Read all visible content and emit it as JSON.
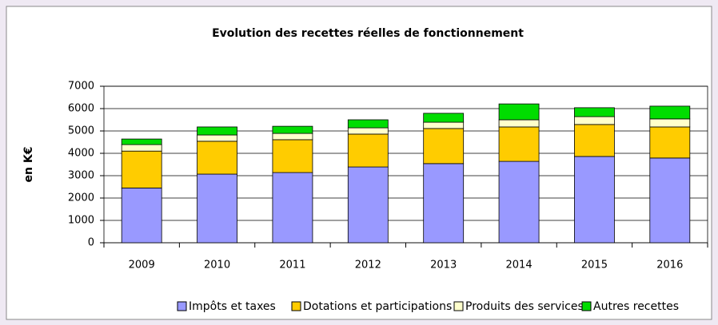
{
  "chart_data": {
    "type": "stacked_bar",
    "title": "Evolution des recettes réelles de fonctionnement",
    "y_label": "en K€",
    "categories": [
      "2009",
      "2010",
      "2011",
      "2012",
      "2013",
      "2014",
      "2015",
      "2016"
    ],
    "series": [
      {
        "name": "Impôts et taxes",
        "color": "#9999ff",
        "values": [
          2450,
          3070,
          3140,
          3390,
          3540,
          3640,
          3860,
          3790
        ]
      },
      {
        "name": "Dotations et participations",
        "color": "#ffcc00",
        "values": [
          1650,
          1470,
          1470,
          1470,
          1570,
          1540,
          1430,
          1390
        ]
      },
      {
        "name": "Produits des services",
        "color": "#ffffcc",
        "values": [
          290,
          280,
          280,
          280,
          280,
          320,
          350,
          360
        ]
      },
      {
        "name": "Autres recettes",
        "color": "#00dd00",
        "values": [
          250,
          360,
          320,
          360,
          400,
          710,
          400,
          570
        ]
      }
    ],
    "ylim": [
      0,
      7000
    ],
    "yticks": [
      0,
      1000,
      2000,
      3000,
      4000,
      5000,
      6000,
      7000
    ],
    "grid": true
  }
}
